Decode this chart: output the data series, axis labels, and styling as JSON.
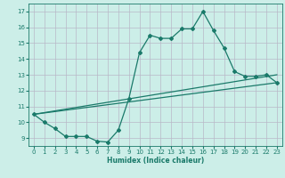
{
  "xlabel": "Humidex (Indice chaleur)",
  "bg_color": "#cceee8",
  "grid_color": "#b8b8c8",
  "line_color": "#1a7a6a",
  "xlim": [
    -0.5,
    23.5
  ],
  "ylim": [
    8.5,
    17.5
  ],
  "yticks": [
    9,
    10,
    11,
    12,
    13,
    14,
    15,
    16,
    17
  ],
  "xticks": [
    0,
    1,
    2,
    3,
    4,
    5,
    6,
    7,
    8,
    9,
    10,
    11,
    12,
    13,
    14,
    15,
    16,
    17,
    18,
    19,
    20,
    21,
    22,
    23
  ],
  "curve_x": [
    0,
    1,
    2,
    3,
    4,
    5,
    6,
    7,
    8,
    9,
    10,
    11,
    12,
    13,
    14,
    15,
    16,
    17,
    18,
    19,
    20,
    21,
    22,
    23
  ],
  "curve_y": [
    10.5,
    10.0,
    9.6,
    9.1,
    9.1,
    9.1,
    8.8,
    8.75,
    9.5,
    11.5,
    14.4,
    15.5,
    15.3,
    15.3,
    15.9,
    15.9,
    17.0,
    15.8,
    14.7,
    13.2,
    12.9,
    12.9,
    13.0,
    12.5
  ],
  "line1_x": [
    0,
    23
  ],
  "line1_y": [
    10.5,
    12.5
  ],
  "line2_x": [
    0,
    23
  ],
  "line2_y": [
    10.5,
    13.0
  ]
}
